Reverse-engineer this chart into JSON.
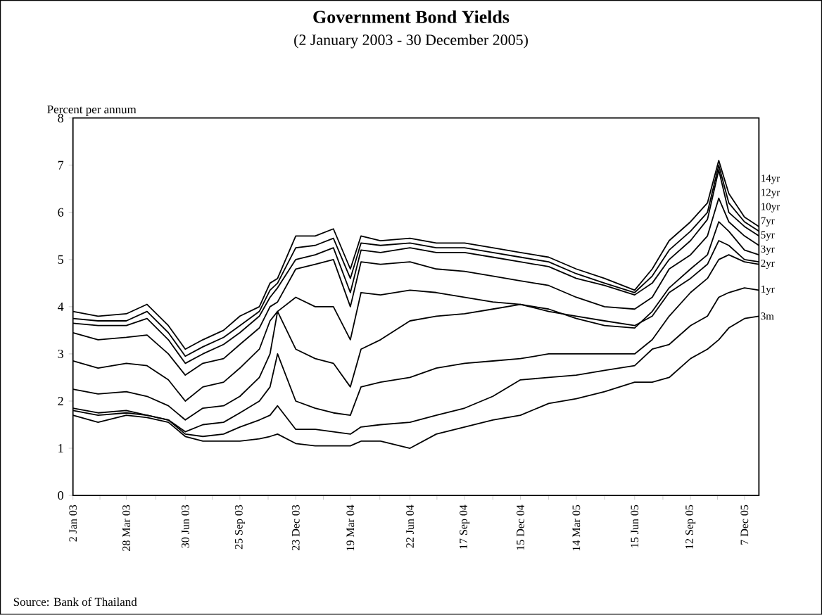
{
  "chart_data": {
    "type": "line",
    "title": "Government Bond Yields",
    "subtitle": "(2  January 2003 - 30 December 2005)",
    "ylabel": "Percent per annum",
    "annotations": [
      "Source:  Bank of Thailand"
    ],
    "x": [
      "2003-01-02",
      "2003-02-11",
      "2003-03-28",
      "2003-04-30",
      "2003-06-03",
      "2003-06-30",
      "2003-07-28",
      "2003-08-30",
      "2003-09-25",
      "2003-10-26",
      "2003-11-12",
      "2003-11-24",
      "2003-12-23",
      "2004-01-23",
      "2004-02-21",
      "2004-03-19",
      "2004-04-05",
      "2004-05-06",
      "2004-06-22",
      "2004-08-03",
      "2004-09-17",
      "2004-11-01",
      "2004-12-15",
      "2005-01-29",
      "2005-03-14",
      "2005-04-28",
      "2005-06-15",
      "2005-07-13",
      "2005-08-09",
      "2005-09-12",
      "2005-10-09",
      "2005-10-27",
      "2005-11-12",
      "2005-12-07",
      "2005-12-30"
    ],
    "series": [
      {
        "name": "14yr",
        "color": "#000000",
        "values": [
          3.9,
          3.8,
          3.85,
          4.05,
          3.6,
          3.1,
          3.3,
          3.5,
          3.8,
          4.0,
          4.5,
          4.6,
          5.5,
          5.5,
          5.65,
          4.8,
          5.5,
          5.4,
          5.45,
          5.35,
          5.35,
          5.25,
          5.15,
          5.05,
          4.8,
          4.6,
          4.35,
          4.8,
          5.4,
          5.8,
          6.2,
          7.1,
          6.4,
          5.9,
          5.7
        ]
      },
      {
        "name": "12yr",
        "color": "#000000",
        "values": [
          3.75,
          3.7,
          3.7,
          3.9,
          3.45,
          2.95,
          3.15,
          3.35,
          3.6,
          3.9,
          4.35,
          4.5,
          5.25,
          5.3,
          5.45,
          4.6,
          5.35,
          5.3,
          5.35,
          5.25,
          5.25,
          5.15,
          5.05,
          4.95,
          4.7,
          4.5,
          4.3,
          4.65,
          5.2,
          5.6,
          6.0,
          7.0,
          6.2,
          5.8,
          5.6
        ]
      },
      {
        "name": "10yr",
        "color": "#000000",
        "values": [
          3.65,
          3.6,
          3.6,
          3.75,
          3.3,
          2.8,
          3.0,
          3.2,
          3.45,
          3.8,
          4.2,
          4.4,
          5.0,
          5.1,
          5.25,
          4.3,
          5.2,
          5.15,
          5.25,
          5.15,
          5.15,
          5.05,
          4.95,
          4.85,
          4.6,
          4.45,
          4.25,
          4.5,
          5.0,
          5.4,
          5.85,
          6.9,
          6.0,
          5.7,
          5.5
        ]
      },
      {
        "name": "7yr",
        "color": "#000000",
        "values": [
          3.45,
          3.3,
          3.35,
          3.4,
          3.0,
          2.55,
          2.8,
          2.9,
          3.2,
          3.55,
          4.0,
          4.1,
          4.8,
          4.9,
          5.0,
          4.0,
          4.95,
          4.9,
          4.95,
          4.8,
          4.75,
          4.65,
          4.55,
          4.45,
          4.2,
          4.0,
          3.95,
          4.2,
          4.8,
          5.1,
          5.5,
          6.3,
          5.8,
          5.5,
          5.3
        ]
      },
      {
        "name": "5yr",
        "color": "#000000",
        "values": [
          2.85,
          2.7,
          2.8,
          2.75,
          2.45,
          2.0,
          2.3,
          2.4,
          2.7,
          3.1,
          3.7,
          3.9,
          4.2,
          4.0,
          4.0,
          3.3,
          4.3,
          4.25,
          4.35,
          4.3,
          4.2,
          4.1,
          4.05,
          3.95,
          3.75,
          3.6,
          3.55,
          3.9,
          4.4,
          4.8,
          5.1,
          5.8,
          5.6,
          5.2,
          5.1
        ]
      },
      {
        "name": "3yr",
        "color": "#000000",
        "values": [
          2.25,
          2.15,
          2.2,
          2.1,
          1.9,
          1.6,
          1.85,
          1.9,
          2.1,
          2.5,
          3.0,
          3.9,
          3.1,
          2.9,
          2.8,
          2.3,
          3.1,
          3.3,
          3.7,
          3.8,
          3.85,
          3.95,
          4.05,
          3.9,
          3.8,
          3.7,
          3.6,
          3.8,
          4.3,
          4.6,
          4.9,
          5.4,
          5.3,
          5.0,
          4.95
        ]
      },
      {
        "name": "2yr",
        "color": "#000000",
        "values": [
          1.85,
          1.75,
          1.8,
          1.7,
          1.6,
          1.35,
          1.5,
          1.55,
          1.75,
          2.0,
          2.3,
          3.0,
          2.0,
          1.85,
          1.75,
          1.7,
          2.3,
          2.4,
          2.5,
          2.7,
          2.8,
          2.85,
          2.9,
          3.0,
          3.0,
          3.0,
          3.0,
          3.3,
          3.8,
          4.3,
          4.6,
          5.0,
          5.1,
          4.95,
          4.9
        ]
      },
      {
        "name": "1yr",
        "color": "#000000",
        "values": [
          1.8,
          1.7,
          1.75,
          1.7,
          1.6,
          1.3,
          1.25,
          1.3,
          1.45,
          1.6,
          1.7,
          1.9,
          1.4,
          1.4,
          1.35,
          1.3,
          1.45,
          1.5,
          1.55,
          1.7,
          1.85,
          2.1,
          2.45,
          2.5,
          2.55,
          2.65,
          2.75,
          3.1,
          3.2,
          3.6,
          3.8,
          4.2,
          4.3,
          4.4,
          4.35
        ]
      },
      {
        "name": "3m",
        "color": "#000000",
        "values": [
          1.7,
          1.55,
          1.7,
          1.65,
          1.55,
          1.25,
          1.15,
          1.15,
          1.15,
          1.2,
          1.25,
          1.3,
          1.1,
          1.05,
          1.05,
          1.05,
          1.15,
          1.15,
          1.0,
          1.3,
          1.45,
          1.6,
          1.7,
          1.95,
          2.05,
          2.2,
          2.4,
          2.4,
          2.5,
          2.9,
          3.1,
          3.3,
          3.55,
          3.75,
          3.8
        ]
      }
    ],
    "xlim": [
      "2003-01-02",
      "2005-12-30"
    ],
    "xticks": [
      {
        "value": "2003-01-02",
        "label": "2 Jan 03"
      },
      {
        "value": "2003-02-14",
        "label": null
      },
      {
        "value": "2003-03-28",
        "label": "28 Mar 03"
      },
      {
        "value": "2003-05-14",
        "label": null
      },
      {
        "value": "2003-06-30",
        "label": "30 Jun 03"
      },
      {
        "value": "2003-08-12",
        "label": null
      },
      {
        "value": "2003-09-25",
        "label": "25 Sep 03"
      },
      {
        "value": "2003-11-09",
        "label": null
      },
      {
        "value": "2003-12-23",
        "label": "23 Dec 03"
      },
      {
        "value": "2004-02-05",
        "label": null
      },
      {
        "value": "2004-03-19",
        "label": "19 Mar 04"
      },
      {
        "value": "2004-05-05",
        "label": null
      },
      {
        "value": "2004-06-22",
        "label": "22 Jun 04"
      },
      {
        "value": "2004-08-04",
        "label": null
      },
      {
        "value": "2004-09-17",
        "label": "17 Sep 04"
      },
      {
        "value": "2004-11-01",
        "label": null
      },
      {
        "value": "2004-12-15",
        "label": "15 Dec 04"
      },
      {
        "value": "2005-01-29",
        "label": null
      },
      {
        "value": "2005-03-14",
        "label": "14 Mar 05"
      },
      {
        "value": "2005-04-28",
        "label": null
      },
      {
        "value": "2005-06-15",
        "label": "15 Jun 05"
      },
      {
        "value": "2005-07-30",
        "label": null
      },
      {
        "value": "2005-09-12",
        "label": "12 Sep 05"
      },
      {
        "value": "2005-10-25",
        "label": null
      },
      {
        "value": "2005-12-07",
        "label": "7 Dec 05"
      }
    ],
    "ylim": [
      0,
      8
    ],
    "yticks": [
      0,
      1,
      2,
      3,
      4,
      5,
      6,
      7,
      8
    ],
    "grid": false,
    "marker": "none",
    "line_style": "solid"
  }
}
